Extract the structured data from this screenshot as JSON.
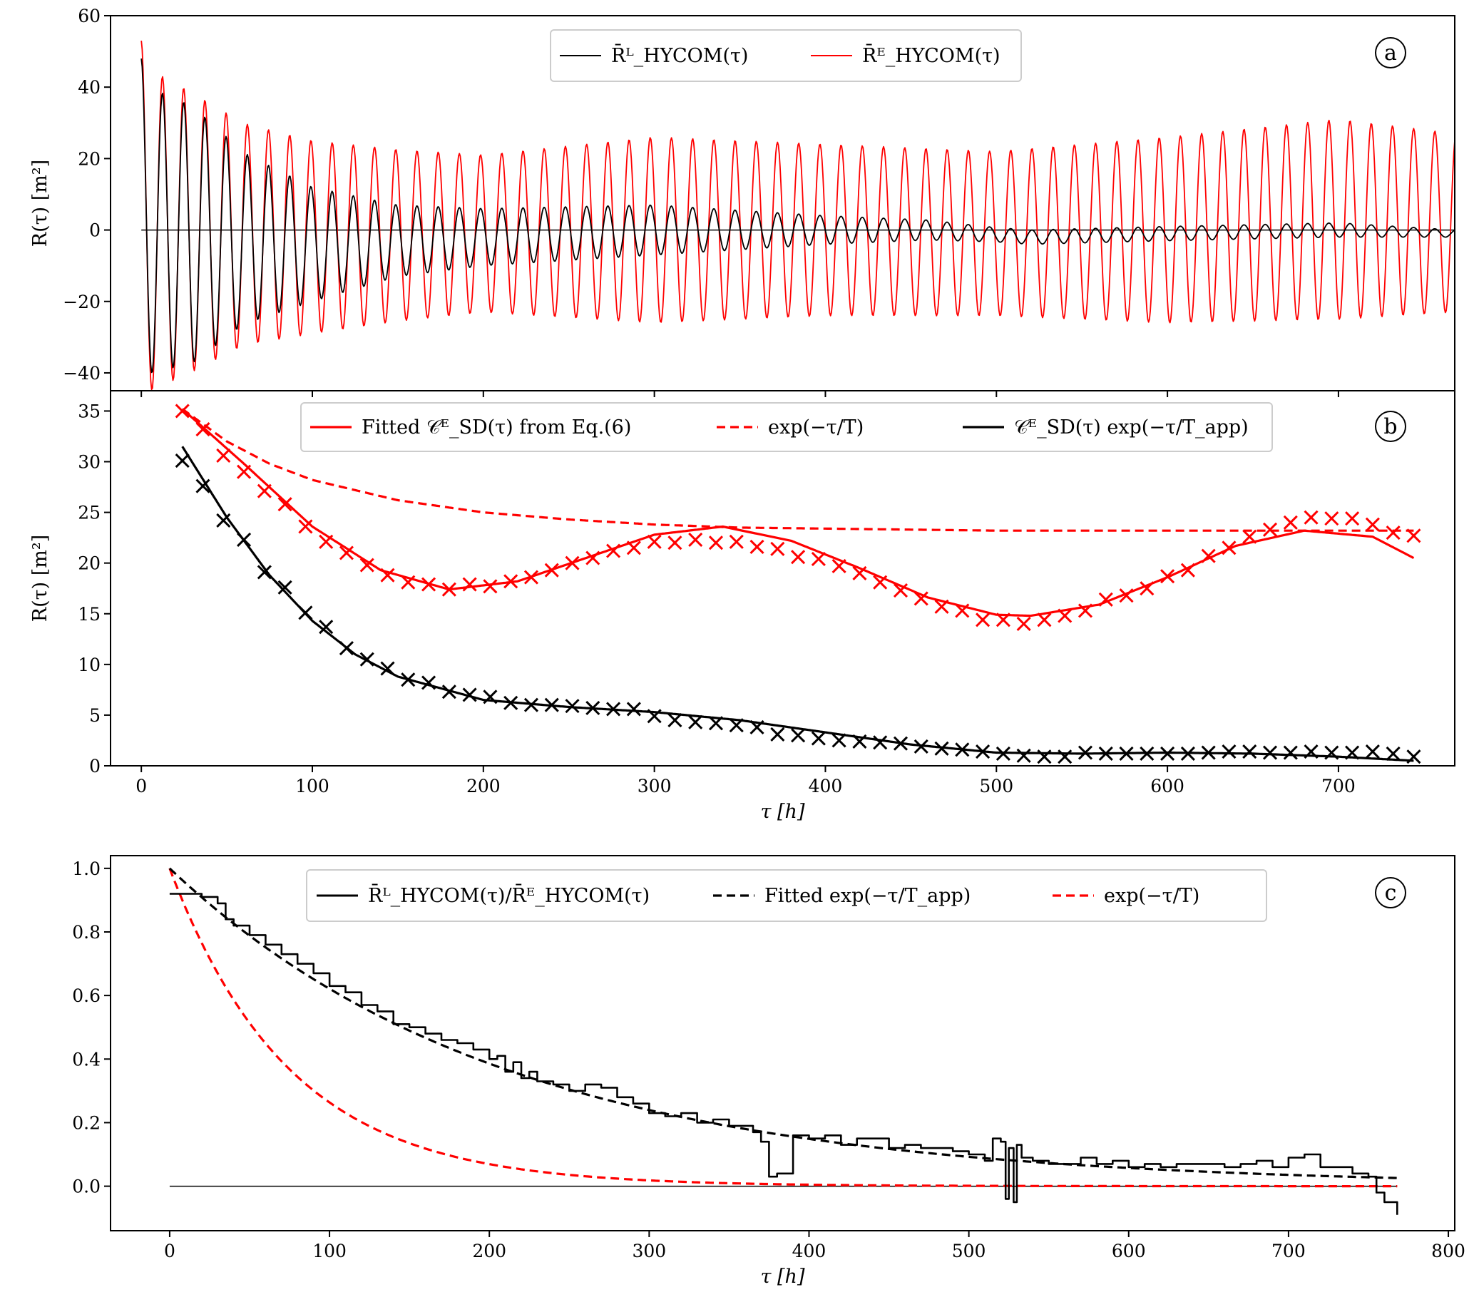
{
  "chart_data": [
    {
      "panel": "a",
      "type": "line",
      "title": "",
      "xlabel": "",
      "ylabel": "R(τ) [m²]",
      "xlim": [
        -18,
        768
      ],
      "ylim": [
        -45,
        60
      ],
      "xticks": [
        0,
        100,
        200,
        300,
        400,
        500,
        600,
        700
      ],
      "xtick_labels_shown": false,
      "yticks": [
        -40,
        -20,
        0,
        20,
        40,
        60
      ],
      "ytick_labels": [
        "−40",
        "−20",
        "0",
        "20",
        "40",
        "60"
      ],
      "legend_position": "top-center",
      "panel_letter": "a",
      "oscillation_period_h": 12.4,
      "series": [
        {
          "name": "R̄ᴸ_HYCOM(τ)",
          "color": "#000000",
          "envelope": {
            "tau": [
              0,
              5,
              30,
              60,
              100,
              150,
              200,
              300,
              400,
              500,
              600,
              700,
              768
            ],
            "amp": [
              48,
              40,
              36,
              24,
              16,
              10,
              8,
              7,
              4,
              2,
              2,
              2,
              1
            ]
          },
          "offset": {
            "tau": [
              0,
              100,
              200,
              300,
              400,
              460,
              520,
              600,
              700,
              768
            ],
            "val": [
              0,
              -4,
              -2,
              0,
              0,
              0,
              -2,
              -1,
              0,
              -1
            ]
          }
        },
        {
          "name": "R̄ᴱ_HYCOM(τ)",
          "color": "#ff0000",
          "envelope": {
            "tau": [
              0,
              5,
              30,
              60,
              100,
              150,
              200,
              300,
              400,
              500,
              600,
              700,
              768
            ],
            "amp": [
              53,
              45,
              39,
              31,
              27,
              24,
              22,
              26,
              24,
              23,
              26,
              28,
              25
            ]
          },
          "offset": {
            "tau": [
              0,
              100,
              200,
              300,
              400,
              500,
              600,
              700,
              768
            ],
            "val": [
              0,
              -2,
              -1,
              0,
              0,
              -1,
              0,
              3,
              2
            ]
          }
        }
      ],
      "zero_line": true
    },
    {
      "panel": "b",
      "type": "line",
      "title": "",
      "xlabel": "τ [h]",
      "ylabel": "R(τ) [m²]",
      "xlim": [
        -18,
        768
      ],
      "ylim": [
        0,
        37
      ],
      "xticks": [
        0,
        100,
        200,
        300,
        400,
        500,
        600,
        700
      ],
      "xtick_labels": [
        "0",
        "100",
        "200",
        "300",
        "400",
        "500",
        "600",
        "700"
      ],
      "yticks": [
        0,
        5,
        10,
        15,
        20,
        25,
        30,
        35
      ],
      "ytick_labels": [
        "0",
        "5",
        "10",
        "15",
        "20",
        "25",
        "30",
        "35"
      ],
      "legend_position": "top-center",
      "panel_letter": "b",
      "series": [
        {
          "name": "Fitted 𝒞ᴱ_SD(τ) from Eq.(6)",
          "color": "#ff0000",
          "style": "solid",
          "x": [
            24,
            60,
            100,
            140,
            180,
            220,
            260,
            300,
            340,
            380,
            420,
            460,
            500,
            520,
            560,
            600,
            640,
            680,
            720,
            744
          ],
          "y": [
            35.2,
            29.8,
            23.6,
            19.3,
            17.4,
            18.2,
            20.5,
            22.8,
            23.6,
            22.2,
            19.5,
            16.6,
            14.9,
            14.8,
            15.9,
            18.6,
            21.7,
            23.2,
            22.6,
            20.5
          ]
        },
        {
          "name": "exp(−τ/T)",
          "color": "#ff0000",
          "style": "dashed",
          "x": [
            24,
            50,
            75,
            100,
            150,
            200,
            250,
            300,
            350,
            400,
            500,
            600,
            700,
            744
          ],
          "y": [
            35.2,
            32.0,
            29.8,
            28.2,
            26.2,
            25.0,
            24.3,
            23.8,
            23.5,
            23.4,
            23.2,
            23.2,
            23.2,
            23.2
          ]
        },
        {
          "name": "𝒞ᴱ_SD(τ) exp(−τ/T_app)",
          "color": "#000000",
          "style": "solid",
          "x": [
            24,
            50,
            75,
            100,
            125,
            150,
            200,
            250,
            300,
            350,
            400,
            450,
            500,
            550,
            600,
            650,
            700,
            744
          ],
          "y": [
            31.5,
            24.5,
            18.8,
            14.3,
            11.0,
            8.8,
            6.5,
            5.8,
            5.3,
            4.5,
            3.3,
            2.1,
            1.3,
            1.2,
            1.3,
            1.2,
            0.9,
            0.5
          ]
        }
      ],
      "markers": [
        {
          "color": "#ff0000",
          "marker": "x",
          "x": [
            24,
            36,
            48,
            60,
            72,
            84,
            96,
            108,
            120,
            132,
            144,
            156,
            168,
            180,
            192,
            204,
            216,
            228,
            240,
            252,
            264,
            276,
            288,
            300,
            312,
            324,
            336,
            348,
            360,
            372,
            384,
            396,
            408,
            420,
            432,
            444,
            456,
            468,
            480,
            492,
            504,
            516,
            528,
            540,
            552,
            564,
            576,
            588,
            600,
            612,
            624,
            636,
            648,
            660,
            672,
            684,
            696,
            708,
            720,
            732,
            744
          ],
          "y": [
            35.0,
            33.2,
            30.6,
            29.0,
            27.1,
            25.8,
            23.6,
            22.1,
            21.0,
            19.8,
            18.8,
            18.1,
            17.9,
            17.4,
            17.9,
            17.7,
            18.2,
            18.6,
            19.3,
            20.0,
            20.5,
            21.2,
            21.5,
            22.1,
            22.0,
            22.3,
            22.0,
            22.1,
            21.6,
            21.4,
            20.6,
            20.4,
            19.7,
            19.0,
            18.1,
            17.3,
            16.5,
            15.7,
            15.3,
            14.4,
            14.4,
            14.0,
            14.4,
            14.8,
            15.3,
            16.4,
            16.8,
            17.5,
            18.7,
            19.3,
            20.7,
            21.5,
            22.6,
            23.3,
            24.0,
            24.5,
            24.4,
            24.4,
            23.8,
            23.0,
            22.7
          ]
        },
        {
          "color": "#000000",
          "marker": "x",
          "x": [
            24,
            36,
            48,
            60,
            72,
            84,
            96,
            108,
            120,
            132,
            144,
            156,
            168,
            180,
            192,
            204,
            216,
            228,
            240,
            252,
            264,
            276,
            288,
            300,
            312,
            324,
            336,
            348,
            360,
            372,
            384,
            396,
            408,
            420,
            432,
            444,
            456,
            468,
            480,
            492,
            504,
            516,
            528,
            540,
            552,
            564,
            576,
            588,
            600,
            612,
            624,
            636,
            648,
            660,
            672,
            684,
            696,
            708,
            720,
            732,
            744
          ],
          "y": [
            30.1,
            27.6,
            24.2,
            22.3,
            19.1,
            17.6,
            15.1,
            13.7,
            11.6,
            10.5,
            9.6,
            8.5,
            8.2,
            7.3,
            7.0,
            6.8,
            6.2,
            6.0,
            6.0,
            5.9,
            5.7,
            5.6,
            5.6,
            4.9,
            4.5,
            4.3,
            4.2,
            4.0,
            3.8,
            3.1,
            3.0,
            2.7,
            2.5,
            2.4,
            2.3,
            2.2,
            1.9,
            1.7,
            1.6,
            1.4,
            1.2,
            1.0,
            0.9,
            0.9,
            1.3,
            1.2,
            1.2,
            1.2,
            1.2,
            1.2,
            1.3,
            1.4,
            1.4,
            1.3,
            1.3,
            1.4,
            1.3,
            1.3,
            1.4,
            1.2,
            0.9
          ]
        }
      ]
    },
    {
      "panel": "c",
      "type": "line",
      "title": "",
      "xlabel": "τ [h]",
      "ylabel": "",
      "xlim": [
        -37,
        804
      ],
      "ylim": [
        -0.14,
        1.04
      ],
      "xticks": [
        0,
        100,
        200,
        300,
        400,
        500,
        600,
        700,
        800
      ],
      "xtick_labels": [
        "0",
        "100",
        "200",
        "300",
        "400",
        "500",
        "600",
        "700",
        "800"
      ],
      "yticks": [
        0.0,
        0.2,
        0.4,
        0.6,
        0.8,
        1.0
      ],
      "ytick_labels": [
        "0.0",
        "0.2",
        "0.4",
        "0.6",
        "0.8",
        "1.0"
      ],
      "legend_position": "top-center",
      "panel_letter": "c",
      "series": [
        {
          "name": "R̄ᴸ_HYCOM(τ)/R̄ᴱ_HYCOM(τ)",
          "color": "#000000",
          "style": "solid",
          "x": [
            0,
            10,
            20,
            30,
            35,
            40,
            50,
            60,
            70,
            80,
            90,
            100,
            110,
            120,
            130,
            140,
            150,
            160,
            170,
            180,
            190,
            200,
            205,
            210,
            215,
            220,
            225,
            230,
            240,
            250,
            260,
            270,
            280,
            290,
            300,
            310,
            320,
            330,
            340,
            350,
            360,
            365,
            370,
            375,
            380,
            390,
            400,
            410,
            420,
            430,
            440,
            450,
            460,
            470,
            480,
            490,
            500,
            510,
            515,
            520,
            523,
            525,
            528,
            530,
            533,
            540,
            550,
            560,
            570,
            580,
            590,
            600,
            610,
            620,
            630,
            640,
            650,
            660,
            670,
            680,
            690,
            700,
            710,
            720,
            730,
            740,
            750,
            755,
            760,
            768
          ],
          "y": [
            0.92,
            0.92,
            0.91,
            0.89,
            0.84,
            0.82,
            0.79,
            0.76,
            0.73,
            0.7,
            0.67,
            0.63,
            0.61,
            0.57,
            0.55,
            0.51,
            0.5,
            0.48,
            0.46,
            0.45,
            0.43,
            0.4,
            0.41,
            0.36,
            0.39,
            0.34,
            0.36,
            0.33,
            0.32,
            0.3,
            0.32,
            0.31,
            0.28,
            0.26,
            0.23,
            0.22,
            0.23,
            0.2,
            0.21,
            0.19,
            0.19,
            0.17,
            0.14,
            0.03,
            0.04,
            0.16,
            0.15,
            0.16,
            0.13,
            0.15,
            0.15,
            0.12,
            0.13,
            0.12,
            0.12,
            0.11,
            0.1,
            0.08,
            0.15,
            0.14,
            -0.04,
            0.12,
            -0.05,
            0.13,
            0.09,
            0.08,
            0.07,
            0.07,
            0.09,
            0.07,
            0.08,
            0.06,
            0.07,
            0.06,
            0.07,
            0.07,
            0.07,
            0.06,
            0.07,
            0.08,
            0.06,
            0.09,
            0.1,
            0.06,
            0.06,
            0.04,
            0.03,
            -0.02,
            -0.05,
            -0.09
          ]
        },
        {
          "name": "Fitted exp(−τ/T_app)",
          "color": "#000000",
          "style": "dashed",
          "func": "exp",
          "T": 210,
          "x_range": [
            0,
            768
          ]
        },
        {
          "name": "exp(−τ/T)",
          "color": "#ff0000",
          "style": "dashed",
          "func": "exp",
          "T": 75,
          "x_range": [
            0,
            768
          ]
        }
      ],
      "zero_line": true
    }
  ]
}
